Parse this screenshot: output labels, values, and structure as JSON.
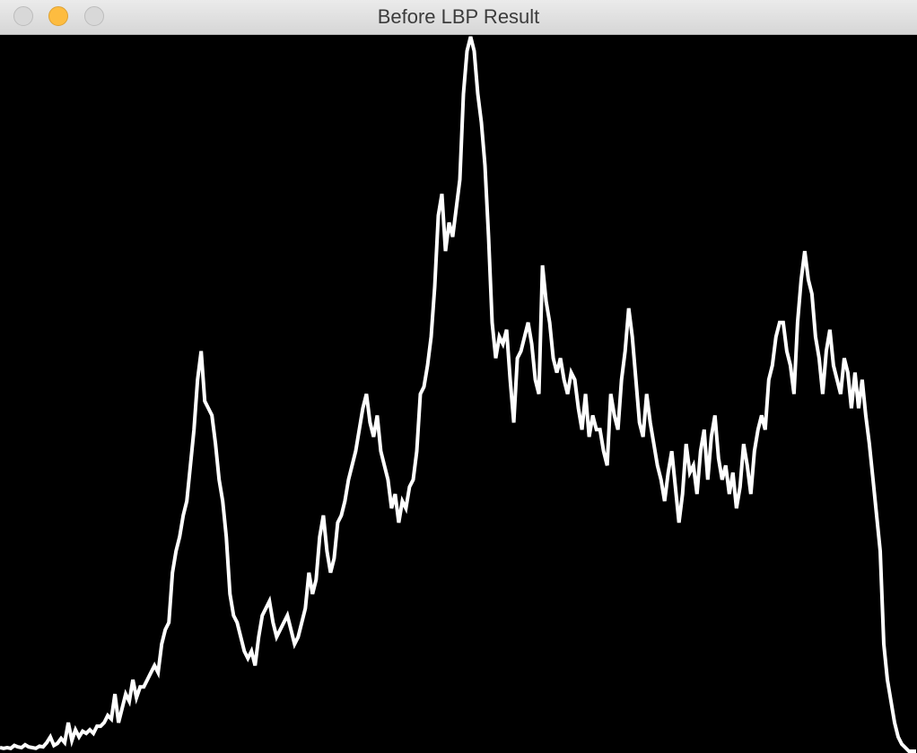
{
  "window": {
    "title": "Before LBP Result",
    "buttons": {
      "close": "close-icon",
      "minimize": "minimize-icon",
      "zoom": "zoom-icon"
    },
    "colors": {
      "close": "#d8d8d8",
      "minimize": "#fdbc40",
      "zoom": "#d8d8d8"
    }
  },
  "chart_data": {
    "type": "line",
    "grid": false,
    "axes_visible": false,
    "background": "#000000",
    "line_color": "#ffffff",
    "bins": 256,
    "ylim": [
      0,
      1
    ],
    "series": [
      {
        "values": [
          0.005,
          0.004,
          0.005,
          0.004,
          0.008,
          0.006,
          0.005,
          0.009,
          0.006,
          0.005,
          0.004,
          0.007,
          0.006,
          0.012,
          0.02,
          0.008,
          0.011,
          0.018,
          0.012,
          0.04,
          0.015,
          0.03,
          0.02,
          0.028,
          0.025,
          0.03,
          0.025,
          0.035,
          0.035,
          0.04,
          0.05,
          0.045,
          0.08,
          0.04,
          0.06,
          0.08,
          0.07,
          0.1,
          0.075,
          0.09,
          0.09,
          0.1,
          0.11,
          0.12,
          0.11,
          0.15,
          0.17,
          0.18,
          0.25,
          0.28,
          0.3,
          0.33,
          0.35,
          0.4,
          0.45,
          0.52,
          0.56,
          0.49,
          0.48,
          0.47,
          0.43,
          0.38,
          0.35,
          0.3,
          0.22,
          0.19,
          0.18,
          0.16,
          0.14,
          0.13,
          0.14,
          0.12,
          0.16,
          0.19,
          0.2,
          0.21,
          0.18,
          0.16,
          0.17,
          0.18,
          0.19,
          0.17,
          0.15,
          0.16,
          0.18,
          0.2,
          0.25,
          0.22,
          0.24,
          0.3,
          0.33,
          0.28,
          0.25,
          0.27,
          0.32,
          0.33,
          0.35,
          0.38,
          0.4,
          0.42,
          0.45,
          0.48,
          0.5,
          0.46,
          0.44,
          0.47,
          0.42,
          0.4,
          0.38,
          0.34,
          0.36,
          0.32,
          0.35,
          0.34,
          0.37,
          0.38,
          0.42,
          0.5,
          0.51,
          0.54,
          0.58,
          0.65,
          0.75,
          0.78,
          0.7,
          0.74,
          0.72,
          0.76,
          0.8,
          0.92,
          0.98,
          1.0,
          0.98,
          0.92,
          0.88,
          0.82,
          0.72,
          0.6,
          0.55,
          0.58,
          0.57,
          0.59,
          0.52,
          0.46,
          0.55,
          0.56,
          0.58,
          0.6,
          0.57,
          0.52,
          0.5,
          0.68,
          0.63,
          0.6,
          0.55,
          0.53,
          0.55,
          0.52,
          0.5,
          0.53,
          0.52,
          0.48,
          0.45,
          0.5,
          0.44,
          0.47,
          0.45,
          0.45,
          0.42,
          0.4,
          0.5,
          0.47,
          0.45,
          0.52,
          0.56,
          0.62,
          0.58,
          0.52,
          0.46,
          0.44,
          0.5,
          0.46,
          0.43,
          0.4,
          0.38,
          0.35,
          0.39,
          0.42,
          0.37,
          0.32,
          0.36,
          0.43,
          0.39,
          0.4,
          0.36,
          0.42,
          0.45,
          0.38,
          0.44,
          0.47,
          0.41,
          0.38,
          0.4,
          0.36,
          0.39,
          0.34,
          0.37,
          0.43,
          0.4,
          0.36,
          0.42,
          0.45,
          0.47,
          0.45,
          0.52,
          0.54,
          0.58,
          0.6,
          0.6,
          0.56,
          0.54,
          0.5,
          0.6,
          0.66,
          0.7,
          0.66,
          0.64,
          0.58,
          0.55,
          0.5,
          0.56,
          0.59,
          0.54,
          0.52,
          0.5,
          0.55,
          0.53,
          0.48,
          0.53,
          0.48,
          0.52,
          0.47,
          0.43,
          0.38,
          0.33,
          0.28,
          0.15,
          0.1,
          0.07,
          0.04,
          0.02,
          0.01,
          0.005,
          0.0,
          0.0,
          0.0
        ]
      }
    ]
  }
}
